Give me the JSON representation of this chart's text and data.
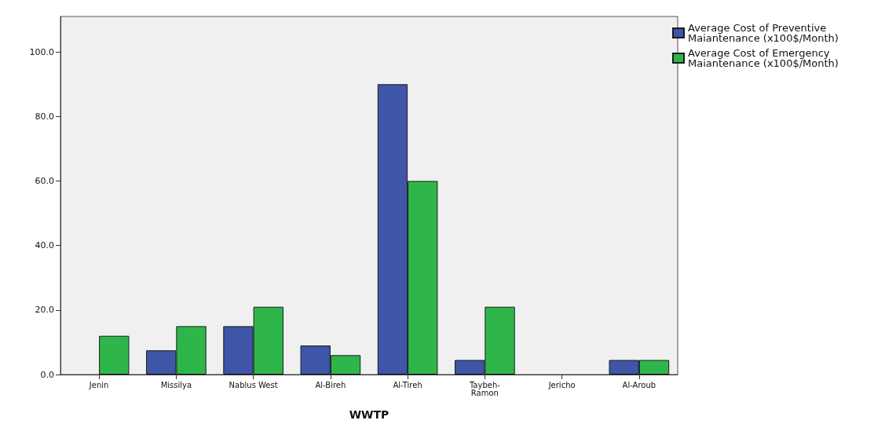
{
  "chart_data": {
    "type": "bar",
    "xlabel": "WWTP",
    "categories": [
      "Jenin",
      "Missilya",
      "Nablus West",
      "Al-Bireh",
      "Al-Tireh",
      "Taybeh-Ramon",
      "Jericho",
      "Al-Aroub"
    ],
    "series": [
      {
        "name": "Average Cost of Preventive Maiantenance (x100$/Month)",
        "color": "#3e55a8",
        "values": [
          0,
          7.5,
          15,
          9,
          90,
          4.5,
          0,
          4.5
        ]
      },
      {
        "name": "Average Cost of Emergency Maiantenance (x100$/Month)",
        "color": "#2fb64a",
        "values": [
          12,
          15,
          21,
          6,
          60,
          21,
          0,
          4.5
        ]
      }
    ],
    "ylim": [
      0,
      111
    ],
    "yticks": [
      {
        "value": 0,
        "label": "0.0"
      },
      {
        "value": 20,
        "label": "20.0"
      },
      {
        "value": 40,
        "label": "40.0"
      },
      {
        "value": 60,
        "label": "60.0"
      },
      {
        "value": 80,
        "label": "80.0"
      },
      {
        "value": 100,
        "label": "100.0"
      }
    ],
    "grid": false,
    "legend": "top right"
  }
}
